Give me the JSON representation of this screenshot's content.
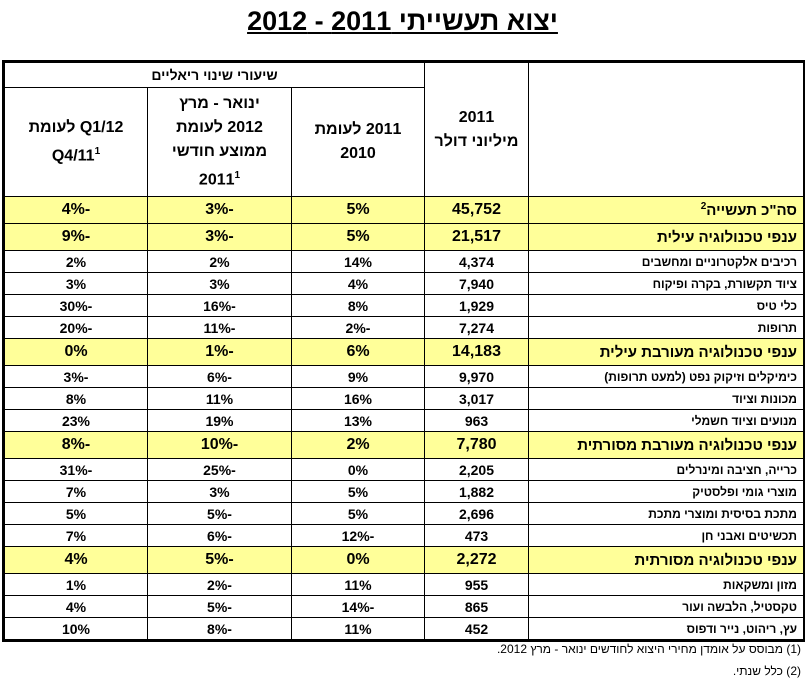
{
  "header": {
    "title": "יצוא תעשייתי 2011 - 2012"
  },
  "table": {
    "group_header": "שיעורי שינוי ריאליים",
    "columns": [
      {
        "lines": [
          ""
        ],
        "note": ""
      },
      {
        "lines": [
          "2011",
          "מיליוני דולר"
        ],
        "note": ""
      },
      {
        "lines": [
          "2011 לעומת",
          "2010"
        ],
        "note": ""
      },
      {
        "lines": [
          "ינואר - מרץ",
          "2012 לעומת",
          "ממוצע חודשי",
          "2011"
        ],
        "note": "1"
      },
      {
        "lines": [
          "Q1/12 לעומת",
          "Q4/11"
        ],
        "note": "1"
      }
    ],
    "rows": [
      {
        "highlight": true,
        "cells": [
          "סה\"כ תעשייה",
          "45,752",
          "5%",
          "-3%",
          "-4%"
        ],
        "note": "2"
      },
      {
        "highlight": true,
        "cells": [
          "ענפי טכנולוגיה עילית",
          "21,517",
          "5%",
          "-3%",
          "-9%"
        ]
      },
      {
        "highlight": false,
        "cells": [
          "רכיבים אלקטרוניים ומחשבים",
          "4,374",
          "14%",
          "2%",
          "2%"
        ]
      },
      {
        "highlight": false,
        "cells": [
          "ציוד תקשורת, בקרה ופיקוח",
          "7,940",
          "4%",
          "3%",
          "3%"
        ]
      },
      {
        "highlight": false,
        "cells": [
          "כלי טיס",
          "1,929",
          "8%",
          "-16%",
          "-30%"
        ]
      },
      {
        "highlight": false,
        "cells": [
          "תרופות",
          "7,274",
          "-2%",
          "-11%",
          "-20%"
        ]
      },
      {
        "highlight": true,
        "cells": [
          "ענפי טכנולוגיה מעורבת עילית",
          "14,183",
          "6%",
          "-1%",
          "0%"
        ]
      },
      {
        "highlight": false,
        "cells": [
          "כימיקלים וזיקוק נפט (למעט תרופות)",
          "9,970",
          "9%",
          "-6%",
          "-3%"
        ]
      },
      {
        "highlight": false,
        "cells": [
          "מכונות וציוד",
          "3,017",
          "16%",
          "11%",
          "8%"
        ]
      },
      {
        "highlight": false,
        "cells": [
          "מנועים וציוד חשמלי",
          "963",
          "13%",
          "19%",
          "23%"
        ]
      },
      {
        "highlight": true,
        "cells": [
          "ענפי טכנולוגיה מעורבת מסורתית",
          "7,780",
          "2%",
          "-10%",
          "-8%"
        ]
      },
      {
        "highlight": false,
        "cells": [
          "כרייה, חציבה ומינרלים",
          "2,205",
          "0%",
          "-25%",
          "-31%"
        ]
      },
      {
        "highlight": false,
        "cells": [
          "מוצרי גומי ופלסטיק",
          "1,882",
          "5%",
          "3%",
          "7%"
        ]
      },
      {
        "highlight": false,
        "cells": [
          "מתכת בסיסית ומוצרי מתכת",
          "2,696",
          "5%",
          "-5%",
          "5%"
        ]
      },
      {
        "highlight": false,
        "cells": [
          "תכשיטים ואבני חן",
          "473",
          "-12%",
          "-6%",
          "7%"
        ]
      },
      {
        "highlight": true,
        "cells": [
          "ענפי טכנולוגיה מסורתית",
          "2,272",
          "0%",
          "-5%",
          "4%"
        ]
      },
      {
        "highlight": false,
        "cells": [
          "מזון ומשקאות",
          "955",
          "11%",
          "-2%",
          "1%"
        ]
      },
      {
        "highlight": false,
        "cells": [
          "טקסטיל, הלבשה ועור",
          "865",
          "-14%",
          "-5%",
          "4%"
        ]
      },
      {
        "highlight": false,
        "cells": [
          "עץ, ריהוט, נייר ודפוס",
          "452",
          "11%",
          "-8%",
          "10%"
        ]
      }
    ]
  },
  "footnotes": [
    "(1) מבוסס על אומדן מחירי היצוא לחודשים ינואר - מרץ 2012.",
    "(2) כלל שנתי."
  ]
}
